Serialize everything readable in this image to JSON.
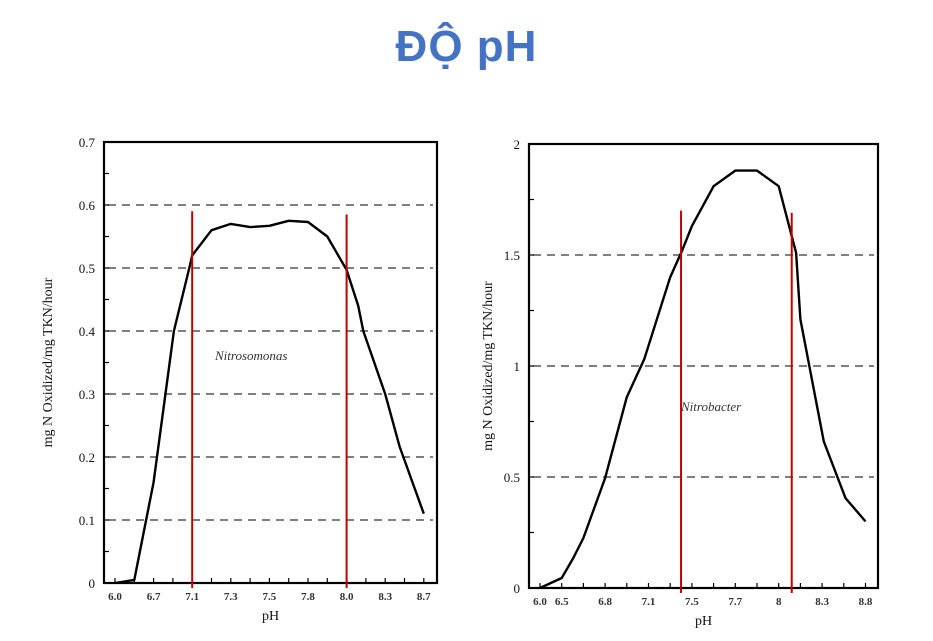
{
  "title": "ĐỘ pH",
  "colors": {
    "title": "#4472c4",
    "curve": "#000000",
    "marker_lines": "#c00000",
    "grid": "#555555"
  },
  "chart_data": [
    {
      "type": "line",
      "xlabel": "pH",
      "ylabel": "mg N Oxidized/mg TKN/hour",
      "annotation": "Nitrosomonas",
      "x_tick_labels": [
        "6.0",
        "6.7",
        "7.1",
        "7.3",
        "7.5",
        "7.8",
        "8.0",
        "8.3",
        "8.7"
      ],
      "y_ticks": [
        0,
        0.1,
        0.2,
        0.3,
        0.4,
        0.5,
        0.6,
        0.7
      ],
      "y_tick_labels": [
        "0",
        "0.1",
        "0.2",
        "0.3",
        "0.4",
        "0.5",
        "0.6",
        "0.7"
      ],
      "ylim": [
        0,
        0.7
      ],
      "grid": "dashed horizontal at 0.1-0.6",
      "points": [
        [
          6.0,
          0
        ],
        [
          6.35,
          0.005
        ],
        [
          6.7,
          0.16
        ],
        [
          6.91,
          0.4
        ],
        [
          7.07,
          0.5
        ],
        [
          7.1,
          0.52
        ],
        [
          7.2,
          0.56
        ],
        [
          7.3,
          0.57
        ],
        [
          7.4,
          0.565
        ],
        [
          7.5,
          0.567
        ],
        [
          7.65,
          0.575
        ],
        [
          7.8,
          0.573
        ],
        [
          7.9,
          0.55
        ],
        [
          8.0,
          0.497
        ],
        [
          8.09,
          0.44
        ],
        [
          8.13,
          0.4
        ],
        [
          8.3,
          0.3
        ],
        [
          8.45,
          0.216
        ],
        [
          8.7,
          0.11
        ]
      ],
      "marker_lines": [
        {
          "x": 7.1,
          "y_top": 0.59
        },
        {
          "x": 8.0,
          "y_top": 0.585
        }
      ]
    },
    {
      "type": "line",
      "xlabel": "pH",
      "ylabel": "mg N Oxidized/mg TKN/hour",
      "annotation": "Nitrobacter",
      "x_tick_labels": [
        "6.0",
        "6.5",
        "6.8",
        "7.1",
        "7.5",
        "7.7",
        "8",
        "8.3",
        "8.8"
      ],
      "y_ticks": [
        0,
        0.5,
        1,
        1.5,
        2
      ],
      "y_tick_labels": [
        "0",
        "0.5",
        "1",
        "1.5",
        "2"
      ],
      "ylim": [
        0,
        2
      ],
      "grid": "dashed horizontal at 0.5, 1, 1.5",
      "points": [
        [
          6.0,
          0
        ],
        [
          6.5,
          0.045
        ],
        [
          6.58,
          0.135
        ],
        [
          6.65,
          0.225
        ],
        [
          6.8,
          0.495
        ],
        [
          6.95,
          0.86
        ],
        [
          7.07,
          1.03
        ],
        [
          7.3,
          1.4
        ],
        [
          7.41,
          1.52
        ],
        [
          7.5,
          1.63
        ],
        [
          7.6,
          1.81
        ],
        [
          7.7,
          1.88
        ],
        [
          7.85,
          1.88
        ],
        [
          8.0,
          1.81
        ],
        [
          8.12,
          1.51
        ],
        [
          8.15,
          1.21
        ],
        [
          8.32,
          0.66
        ],
        [
          8.57,
          0.405
        ],
        [
          8.8,
          0.3
        ]
      ],
      "marker_lines": [
        {
          "x": 7.4,
          "y_top": 1.7
        },
        {
          "x": 8.09,
          "y_top": 1.69
        }
      ]
    }
  ]
}
